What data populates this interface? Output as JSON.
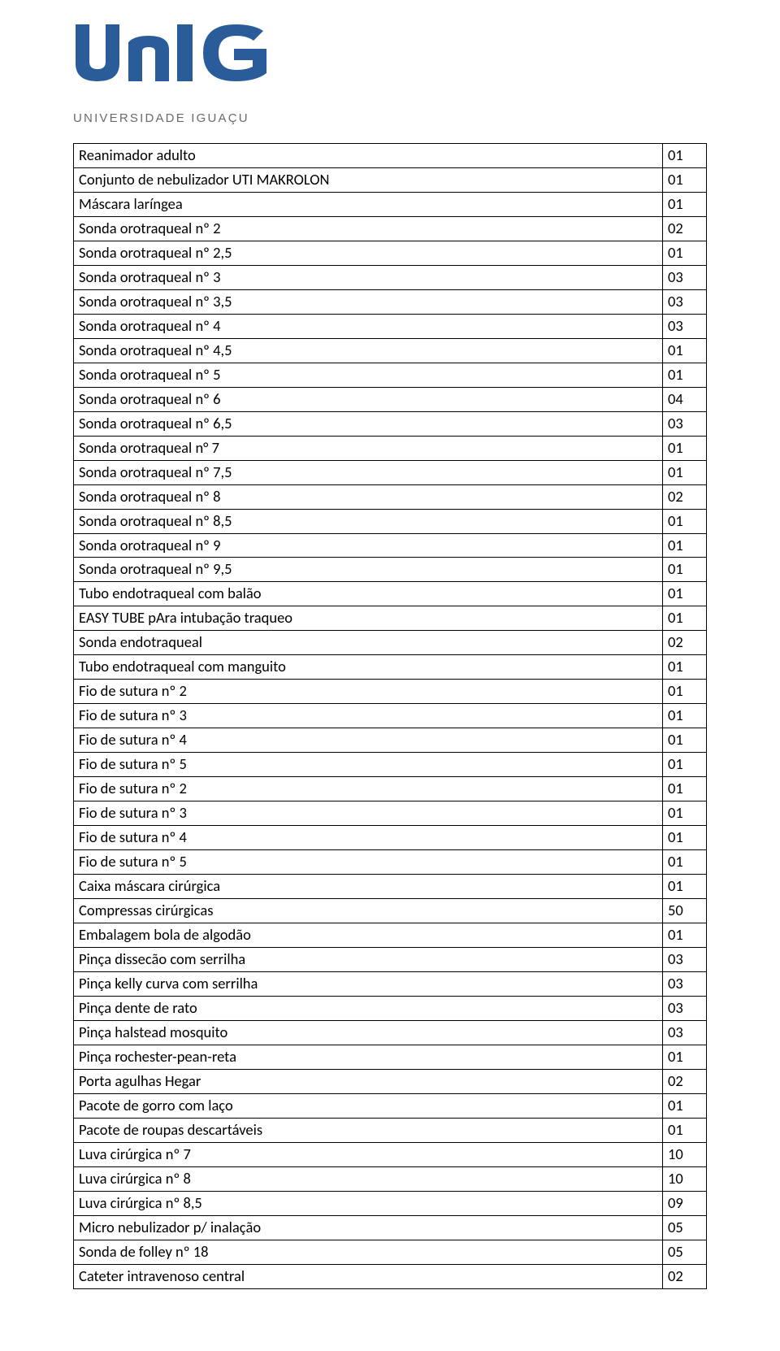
{
  "logo": {
    "main": "UNIG",
    "sub": "UNIVERSIDADE IGUAÇU"
  },
  "table": {
    "col_widths_pct": [
      93,
      7
    ],
    "border_color": "#000000",
    "font_size_pt": 14,
    "rows": [
      {
        "label": "Reanimador adulto",
        "value": "01"
      },
      {
        "label": "Conjunto de nebulizador UTI MAKROLON",
        "value": "01"
      },
      {
        "label": "Máscara laríngea",
        "value": "01"
      },
      {
        "label": "Sonda orotraqueal nº 2",
        "value": "02"
      },
      {
        "label": "Sonda orotraqueal nº 2,5",
        "value": "01"
      },
      {
        "label": "Sonda orotraqueal nº 3",
        "value": "03"
      },
      {
        "label": "Sonda orotraqueal nº 3,5",
        "value": "03"
      },
      {
        "label": "Sonda orotraqueal nº 4",
        "value": "03"
      },
      {
        "label": "Sonda orotraqueal nº 4,5",
        "value": "01"
      },
      {
        "label": "Sonda orotraqueal nº 5",
        "value": "01"
      },
      {
        "label": "Sonda orotraqueal nº 6",
        "value": "04"
      },
      {
        "label": "Sonda orotraqueal nº 6,5",
        "value": "03"
      },
      {
        "label": "Sonda orotraqueal n° 7",
        "value": "01"
      },
      {
        "label": "Sonda orotraqueal nº 7,5",
        "value": "01"
      },
      {
        "label": "Sonda orotraqueal nº 8",
        "value": "02"
      },
      {
        "label": "Sonda orotraqueal nº 8,5",
        "value": "01"
      },
      {
        "label": "Sonda orotraqueal nº 9",
        "value": "01"
      },
      {
        "label": "Sonda orotraqueal nº 9,5",
        "value": "01"
      },
      {
        "label": "Tubo endotraqueal com balão",
        "value": "01"
      },
      {
        "label": "EASY TUBE pAra intubação traqueo",
        "value": "01"
      },
      {
        "label": "Sonda endotraqueal",
        "value": "02"
      },
      {
        "label": "Tubo endotraqueal com manguito",
        "value": "01"
      },
      {
        "label": "Fio de sutura nº 2",
        "value": "01"
      },
      {
        "label": "Fio de sutura nº 3",
        "value": "01"
      },
      {
        "label": "Fio de sutura nº 4",
        "value": "01"
      },
      {
        "label": "Fio de sutura nº 5",
        "value": "01"
      },
      {
        "label": "Fio de sutura nº 2",
        "value": "01"
      },
      {
        "label": "Fio de sutura nº 3",
        "value": "01"
      },
      {
        "label": "Fio de sutura nº 4",
        "value": "01"
      },
      {
        "label": "Fio de sutura nº 5",
        "value": "01"
      },
      {
        "label": "Caixa máscara cirúrgica",
        "value": "01"
      },
      {
        "label": "Compressas cirúrgicas",
        "value": "50"
      },
      {
        "label": "Embalagem bola de algodão",
        "value": "01"
      },
      {
        "label": "Pinça dissecão com serrilha",
        "value": "03"
      },
      {
        "label": "Pinça kelly curva com serrilha",
        "value": "03"
      },
      {
        "label": "Pinça dente de rato",
        "value": "03"
      },
      {
        "label": "Pinça halstead mosquito",
        "value": "03"
      },
      {
        "label": "Pinça rochester-pean-reta",
        "value": "01"
      },
      {
        "label": "Porta agulhas Hegar",
        "value": "02"
      },
      {
        "label": "Pacote de gorro com laço",
        "value": "01"
      },
      {
        "label": "Pacote de roupas descartáveis",
        "value": "01"
      },
      {
        "label": "Luva cirúrgica nº 7",
        "value": "10"
      },
      {
        "label": "Luva cirúrgica nº 8",
        "value": "10"
      },
      {
        "label": "Luva cirúrgica nº 8,5",
        "value": "09"
      },
      {
        "label": "Micro nebulizador p/ inalação",
        "value": "05"
      },
      {
        "label": "Sonda de folley nº 18",
        "value": "05"
      },
      {
        "label": "Cateter intravenoso central",
        "value": "02"
      }
    ]
  }
}
